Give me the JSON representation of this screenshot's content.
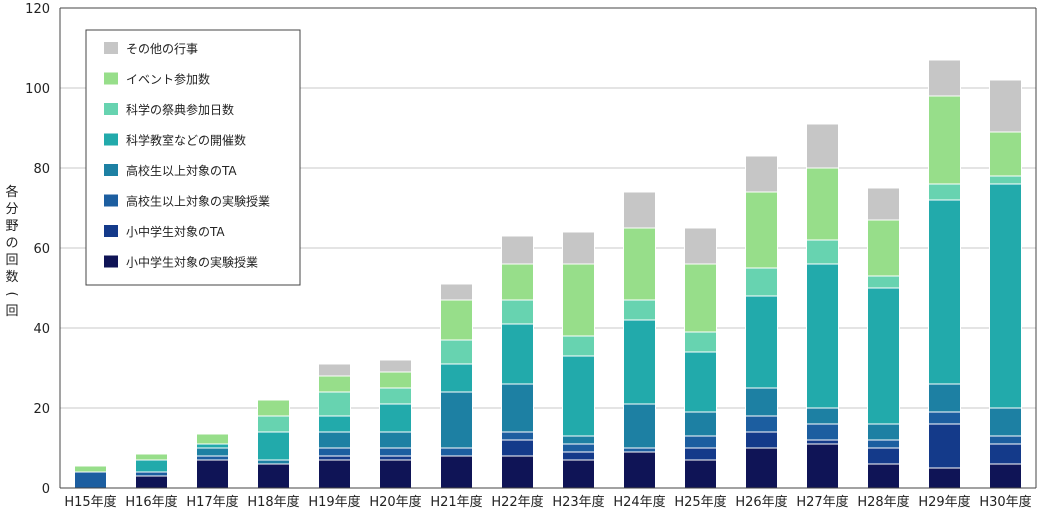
{
  "chart_data": {
    "type": "bar",
    "stacked": true,
    "ylabel": "各分野の回数(回",
    "ylim": [
      0,
      120
    ],
    "yticks": [
      0,
      20,
      40,
      60,
      80,
      100,
      120
    ],
    "grid": true,
    "legend_position": "top-left",
    "categories": [
      "H15年度",
      "H16年度",
      "H17年度",
      "H18年度",
      "H19年度",
      "H20年度",
      "H21年度",
      "H22年度",
      "H23年度",
      "H24年度",
      "H25年度",
      "H26年度",
      "H27年度",
      "H28年度",
      "H29年度",
      "H30年度"
    ],
    "series": [
      {
        "name": "小中学生対象の実験授業",
        "color": "#0f1456",
        "values": [
          0,
          3,
          7,
          6,
          7,
          7,
          8,
          8,
          7,
          9,
          7,
          10,
          11,
          6,
          5,
          6
        ]
      },
      {
        "name": "小中学生対象のTA",
        "color": "#143a8a",
        "values": [
          0,
          0,
          0,
          0,
          1,
          1,
          0,
          4,
          2,
          0,
          3,
          4,
          1,
          4,
          11,
          5
        ]
      },
      {
        "name": "高校生以上対象の実験授業",
        "color": "#1c5ea0",
        "values": [
          4,
          1,
          1,
          0,
          2,
          2,
          2,
          2,
          2,
          1,
          3,
          4,
          4,
          2,
          3,
          2
        ]
      },
      {
        "name": "高校生以上対象のTA",
        "color": "#1d80a3",
        "values": [
          0,
          0,
          2,
          1,
          4,
          4,
          14,
          12,
          2,
          11,
          6,
          7,
          4,
          4,
          7,
          7
        ]
      },
      {
        "name": "科学教室などの開催数",
        "color": "#22aaab",
        "values": [
          0,
          3,
          1,
          7,
          4,
          7,
          7,
          15,
          20,
          21,
          15,
          23,
          36,
          34,
          46,
          56
        ]
      },
      {
        "name": "科学の祭典参加日数",
        "color": "#67d3b0",
        "values": [
          0,
          0,
          0,
          4,
          6,
          4,
          6,
          6,
          5,
          5,
          5,
          7,
          6,
          3,
          4,
          2
        ]
      },
      {
        "name": "イベント参加数",
        "color": "#97de8a",
        "values": [
          1.5,
          1.5,
          2.5,
          4,
          4,
          4,
          10,
          9,
          18,
          18,
          17,
          19,
          18,
          14,
          22,
          11
        ]
      },
      {
        "name": "その他の行事",
        "color": "#c6c6c6",
        "values": [
          0,
          0,
          0,
          0,
          3,
          3,
          4,
          7,
          8,
          9,
          9,
          9,
          11,
          8,
          9,
          13
        ]
      }
    ]
  }
}
